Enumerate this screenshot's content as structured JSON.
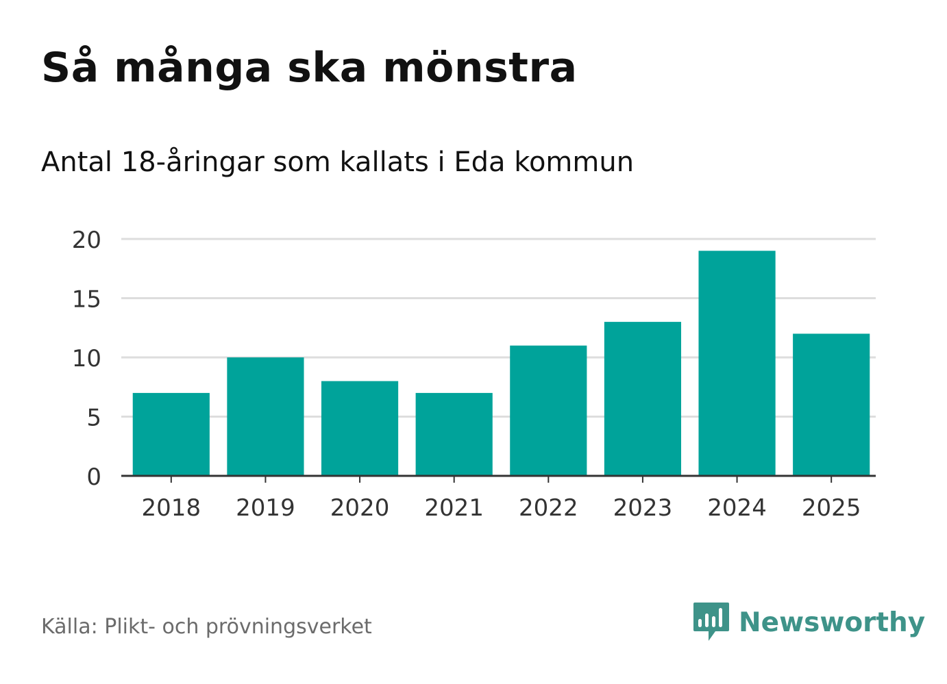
{
  "title": "Så många ska mönstra",
  "subtitle": "Antal 18-åringar som kallats i Eda kommun",
  "source": "Källa: Plikt- och prövningsverket",
  "brand": {
    "name": "Newsworthy",
    "icon": "newsworthy-logo-icon",
    "color": "#3e9389"
  },
  "colors": {
    "bar": "#00a39a",
    "grid": "#dddddd",
    "axis": "#333333",
    "tick_text": "#333333"
  },
  "chart_data": {
    "type": "bar",
    "title": "Så många ska mönstra",
    "subtitle": "Antal 18-åringar som kallats i Eda kommun",
    "xlabel": "",
    "ylabel": "",
    "categories": [
      "2018",
      "2019",
      "2020",
      "2021",
      "2022",
      "2023",
      "2024",
      "2025"
    ],
    "values": [
      7,
      10,
      8,
      7,
      11,
      13,
      19,
      12
    ],
    "ylim": [
      0,
      20
    ],
    "yticks": [
      0,
      5,
      10,
      15,
      20
    ],
    "ytick_labels": [
      "0",
      "5",
      "10",
      "15",
      "20"
    ],
    "grid": true,
    "legend": "none"
  }
}
